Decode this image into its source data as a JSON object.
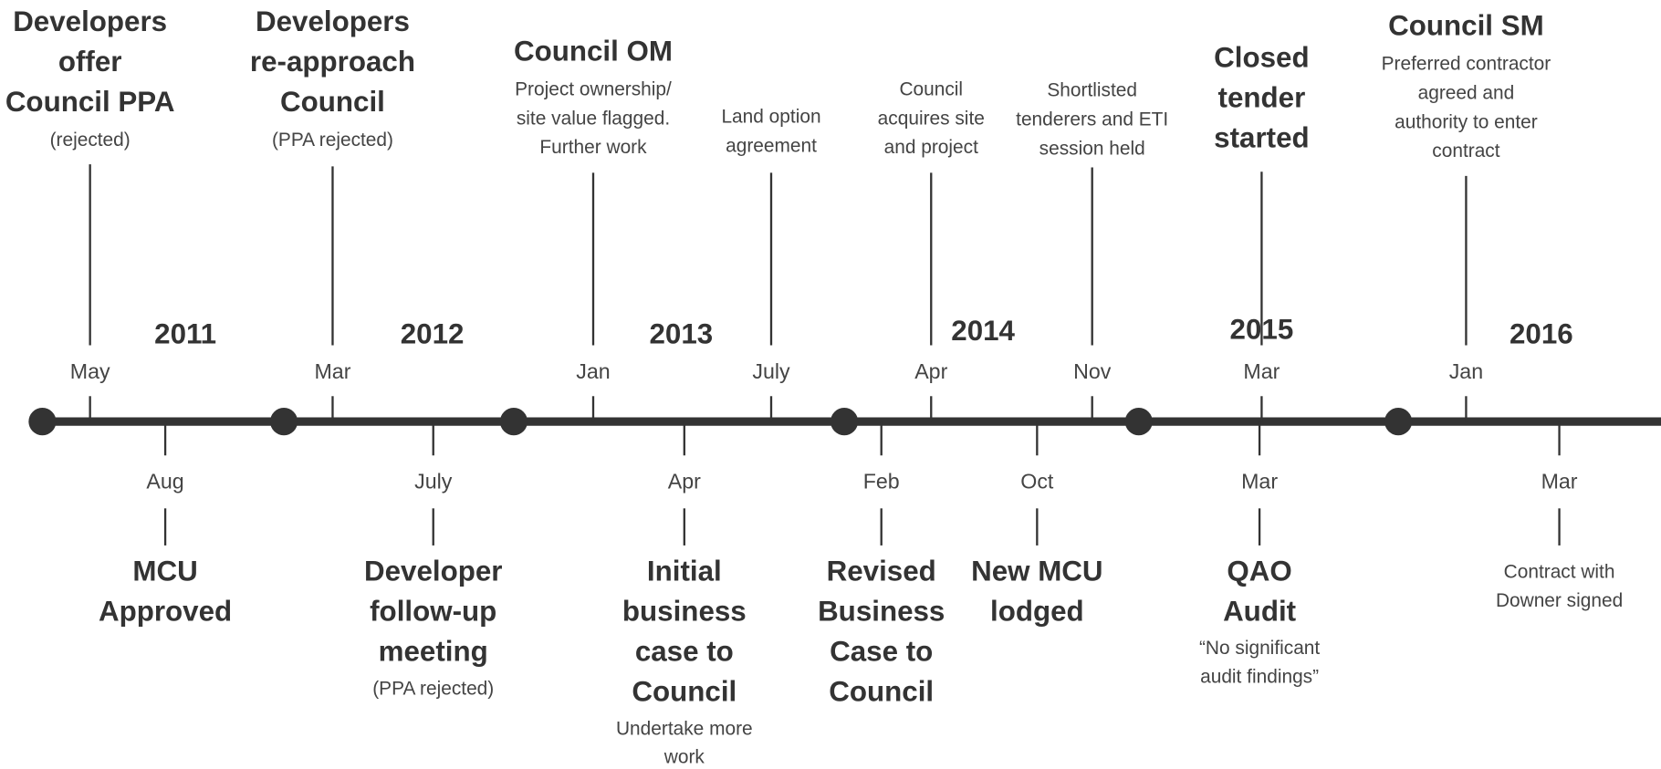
{
  "years": [
    "2011",
    "2012",
    "2013",
    "2014",
    "2015",
    "2016"
  ],
  "above": [
    {
      "month": "May",
      "title": [
        "Developers",
        "offer",
        "Council PPA"
      ],
      "subtitle": [
        "(rejected)"
      ]
    },
    {
      "month": "Mar",
      "title": [
        "Developers",
        "re-approach",
        "Council"
      ],
      "subtitle": [
        "(PPA rejected)"
      ]
    },
    {
      "month": "Jan",
      "title": [
        "Council OM"
      ],
      "subtitle": [
        "Project ownership/",
        "site value flagged.",
        "Further work"
      ]
    },
    {
      "month": "July",
      "title": [],
      "subtitle": [
        "Land option",
        "agreement"
      ]
    },
    {
      "month": "Apr",
      "title": [],
      "subtitle": [
        "Council",
        "acquires site",
        "and project"
      ]
    },
    {
      "month": "Nov",
      "title": [],
      "subtitle": [
        "Shortlisted",
        "tenderers and ETI",
        "session held"
      ]
    },
    {
      "month": "Mar",
      "title": [
        "Closed",
        "tender",
        "started"
      ],
      "subtitle": []
    },
    {
      "month": "Jan",
      "title": [
        "Council SM"
      ],
      "subtitle": [
        "Preferred contractor",
        "agreed and",
        "authority to enter",
        "contract"
      ]
    }
  ],
  "below": [
    {
      "month": "Aug",
      "title": [
        "MCU",
        "Approved"
      ],
      "subtitle": []
    },
    {
      "month": "July",
      "title": [
        "Developer",
        "follow-up",
        "meeting"
      ],
      "subtitle": [
        "(PPA rejected)"
      ]
    },
    {
      "month": "Apr",
      "title": [
        "Initial",
        "business",
        "case to",
        "Council"
      ],
      "subtitle": [
        "Undertake more",
        "work"
      ]
    },
    {
      "month": "Feb",
      "title": [
        "Revised",
        "Business",
        "Case to",
        "Council"
      ],
      "subtitle": []
    },
    {
      "month": "Oct",
      "title": [
        "New MCU",
        "lodged"
      ],
      "subtitle": []
    },
    {
      "month": "Mar",
      "title": [
        "QAO",
        "Audit"
      ],
      "subtitle": [
        "“No significant",
        "audit findings”"
      ]
    },
    {
      "month": "Mar",
      "title": [],
      "subtitle": [
        "Contract with",
        "Downer signed"
      ]
    }
  ]
}
